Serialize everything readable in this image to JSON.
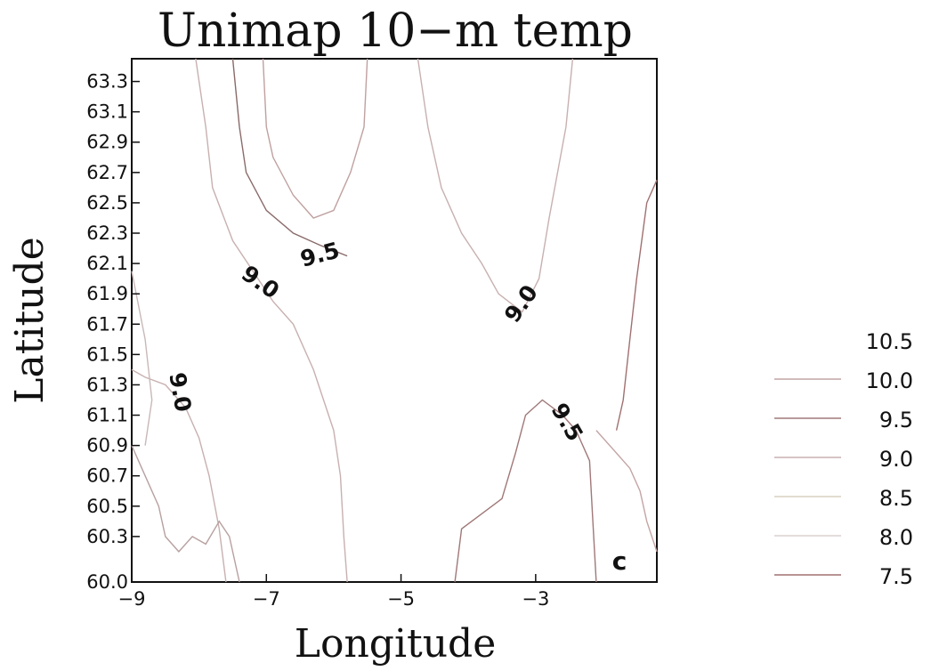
{
  "chart_data": {
    "type": "contour",
    "title": "Unimap 10−m temp",
    "xlabel": "Longitude",
    "ylabel": "Latitude",
    "xlim": [
      -9,
      -1.2
    ],
    "ylim": [
      60.0,
      63.45
    ],
    "x_ticks": [
      "-9",
      "-7",
      "-5",
      "-3"
    ],
    "x_tick_values": [
      -9,
      -7,
      -5,
      -3
    ],
    "y_ticks": [
      "60.0",
      "60.3",
      "60.5",
      "60.7",
      "60.9",
      "61.1",
      "61.3",
      "61.5",
      "61.7",
      "61.9",
      "62.1",
      "62.3",
      "62.5",
      "62.7",
      "62.9",
      "63.1",
      "63.3"
    ],
    "y_tick_values": [
      60.0,
      60.3,
      60.5,
      60.7,
      60.9,
      61.1,
      61.3,
      61.5,
      61.7,
      61.9,
      62.1,
      62.3,
      62.5,
      62.7,
      62.9,
      63.1,
      63.3
    ],
    "contour_levels": [
      "10.5",
      "10.0",
      "9.5",
      "9.0",
      "8.5",
      "8.0",
      "7.5"
    ],
    "legend_colors": [
      "#d8c8c8",
      "#c4a4a4",
      "#a07878",
      "#c8b0b0",
      "#d8d0c0",
      "#dcd0d0",
      "#a07070"
    ],
    "legend_placement": "right",
    "panel_letter": "c",
    "contour_labels": [
      {
        "text": "9.5",
        "x": -6.2,
        "y": 62.15,
        "angle": -15
      },
      {
        "text": "9.0",
        "x": -7.1,
        "y": 61.97,
        "angle": 35
      },
      {
        "text": "9.0",
        "x": -3.2,
        "y": 61.83,
        "angle": -55
      },
      {
        "text": "9.0",
        "x": -8.3,
        "y": 61.25,
        "angle": 80
      },
      {
        "text": "9.5",
        "x": -2.55,
        "y": 61.05,
        "angle": 60
      }
    ],
    "contours": [
      {
        "level": "9.5",
        "color": "#8a6a6a",
        "points": [
          [
            -7.5,
            63.45
          ],
          [
            -7.4,
            63.0
          ],
          [
            -7.3,
            62.7
          ],
          [
            -7.0,
            62.45
          ],
          [
            -6.6,
            62.3
          ],
          [
            -6.2,
            62.22
          ],
          [
            -5.8,
            62.15
          ]
        ]
      },
      {
        "level": "10.0",
        "color": "#c0a0a0",
        "points": [
          [
            -7.05,
            63.45
          ],
          [
            -7.0,
            63.0
          ],
          [
            -6.9,
            62.8
          ],
          [
            -6.6,
            62.55
          ],
          [
            -6.3,
            62.4
          ],
          [
            -6.0,
            62.45
          ],
          [
            -5.75,
            62.7
          ],
          [
            -5.55,
            63.0
          ],
          [
            -5.5,
            63.45
          ]
        ]
      },
      {
        "level": "9.0",
        "color": "#c8b0b0",
        "points": [
          [
            -8.05,
            63.45
          ],
          [
            -7.9,
            63.0
          ],
          [
            -7.8,
            62.6
          ],
          [
            -7.5,
            62.25
          ],
          [
            -7.2,
            62.05
          ],
          [
            -6.9,
            61.85
          ],
          [
            -6.6,
            61.7
          ],
          [
            -6.3,
            61.4
          ],
          [
            -6.0,
            61.0
          ],
          [
            -5.9,
            60.7
          ],
          [
            -5.85,
            60.3
          ],
          [
            -5.8,
            60.0
          ]
        ]
      },
      {
        "level": "9.0",
        "color": "#c8b0b0",
        "points": [
          [
            -4.75,
            63.45
          ],
          [
            -4.6,
            63.0
          ],
          [
            -4.4,
            62.6
          ],
          [
            -4.1,
            62.3
          ],
          [
            -3.8,
            62.1
          ],
          [
            -3.55,
            61.9
          ],
          [
            -3.2,
            61.78
          ],
          [
            -2.95,
            62.0
          ],
          [
            -2.8,
            62.4
          ],
          [
            -2.55,
            63.0
          ],
          [
            -2.45,
            63.45
          ]
        ]
      },
      {
        "level": "9.0",
        "color": "#c8b0b0",
        "points": [
          [
            -9,
            61.4
          ],
          [
            -8.8,
            61.35
          ],
          [
            -8.5,
            61.3
          ],
          [
            -8.2,
            61.15
          ],
          [
            -8.0,
            60.95
          ],
          [
            -7.85,
            60.7
          ],
          [
            -7.7,
            60.35
          ],
          [
            -7.6,
            60.0
          ]
        ]
      },
      {
        "level": "9.5",
        "color": "#a07878",
        "points": [
          [
            -4.2,
            60.0
          ],
          [
            -4.1,
            60.35
          ],
          [
            -3.8,
            60.45
          ],
          [
            -3.5,
            60.55
          ],
          [
            -3.3,
            60.85
          ],
          [
            -3.15,
            61.1
          ],
          [
            -2.9,
            61.2
          ],
          [
            -2.6,
            61.1
          ],
          [
            -2.4,
            61.0
          ],
          [
            -2.2,
            60.8
          ],
          [
            -2.15,
            60.4
          ],
          [
            -2.1,
            60.0
          ]
        ]
      },
      {
        "level": "10.0",
        "color": "#c4a4a4",
        "points": [
          [
            -2.1,
            61.0
          ],
          [
            -1.8,
            60.85
          ],
          [
            -1.6,
            60.75
          ],
          [
            -1.45,
            60.6
          ],
          [
            -1.35,
            60.4
          ],
          [
            -1.2,
            60.2
          ]
        ]
      },
      {
        "level": "10.5",
        "color": "#a07070",
        "points": [
          [
            -1.2,
            62.65
          ],
          [
            -1.35,
            62.5
          ],
          [
            -1.5,
            62.0
          ],
          [
            -1.6,
            61.6
          ],
          [
            -1.7,
            61.2
          ],
          [
            -1.8,
            61.0
          ]
        ]
      },
      {
        "level": "8.5",
        "color": "#b8a0a0",
        "points": [
          [
            -9,
            60.9
          ],
          [
            -8.8,
            60.7
          ],
          [
            -8.6,
            60.5
          ],
          [
            -8.5,
            60.3
          ],
          [
            -8.3,
            60.2
          ],
          [
            -8.1,
            60.3
          ],
          [
            -7.9,
            60.25
          ],
          [
            -7.7,
            60.4
          ],
          [
            -7.55,
            60.3
          ],
          [
            -7.4,
            60.0
          ]
        ]
      },
      {
        "level": "9.5",
        "color": "#c8b8b8",
        "points": [
          [
            -9,
            62.05
          ],
          [
            -8.8,
            61.6
          ],
          [
            -8.7,
            61.2
          ],
          [
            -8.8,
            60.9
          ]
        ]
      }
    ]
  }
}
